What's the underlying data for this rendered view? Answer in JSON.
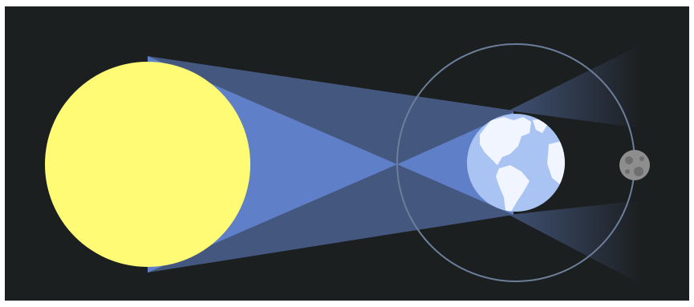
{
  "colors": {
    "background": "#1c1f20",
    "frame": "#ffffff",
    "sun": "#fffb74",
    "sun_edge": "#fff15a",
    "light_cone": "#5f80c8",
    "penumbra": "#44577f",
    "orbit": "#6b7f9a",
    "earth_ocean": "#a9c3f2",
    "earth_land": "#f1f5ff",
    "earth_shade": "#7f9fdc",
    "moon": "#8e8e8e",
    "moon_crater": "#6f6f6f"
  },
  "icons": {
    "sun": "sun-disc",
    "earth": "earth-globe",
    "moon": "moon-disc"
  }
}
